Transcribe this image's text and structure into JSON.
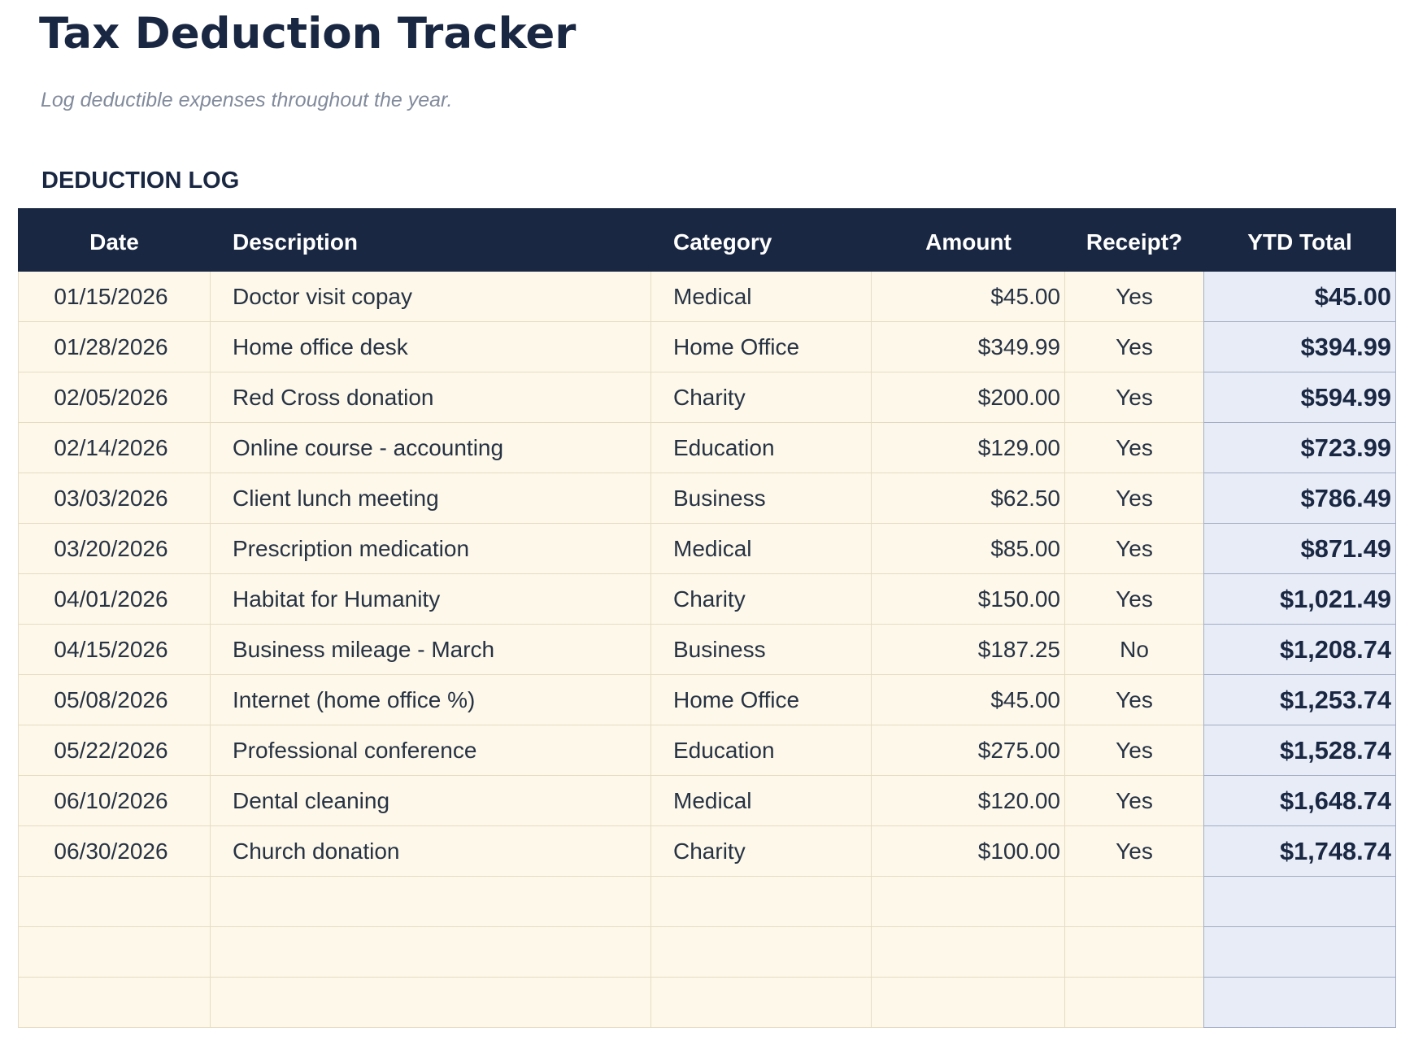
{
  "page": {
    "title": "Tax Deduction Tracker",
    "subtitle": "Log deductible expenses throughout the year.",
    "section_label": "DEDUCTION LOG"
  },
  "colors": {
    "navy": "#192742",
    "cream": "#fdf8ea",
    "tan_border": "#e6dcc2",
    "lavender": "#e8ecf7",
    "lavender_border": "#a3adc4",
    "subtitle_text": "#828b9c",
    "body_text": "#273243",
    "header_text": "#ffffff"
  },
  "table": {
    "columns": [
      "Date",
      "Description",
      "Category",
      "Amount",
      "Receipt?",
      "YTD Total"
    ],
    "rows": [
      {
        "date": "01/15/2026",
        "description": "Doctor visit copay",
        "category": "Medical",
        "amount": "$45.00",
        "receipt": "Yes",
        "ytd": "$45.00"
      },
      {
        "date": "01/28/2026",
        "description": "Home office desk",
        "category": "Home Office",
        "amount": "$349.99",
        "receipt": "Yes",
        "ytd": "$394.99"
      },
      {
        "date": "02/05/2026",
        "description": "Red Cross donation",
        "category": "Charity",
        "amount": "$200.00",
        "receipt": "Yes",
        "ytd": "$594.99"
      },
      {
        "date": "02/14/2026",
        "description": "Online course - accounting",
        "category": "Education",
        "amount": "$129.00",
        "receipt": "Yes",
        "ytd": "$723.99"
      },
      {
        "date": "03/03/2026",
        "description": "Client lunch meeting",
        "category": "Business",
        "amount": "$62.50",
        "receipt": "Yes",
        "ytd": "$786.49"
      },
      {
        "date": "03/20/2026",
        "description": "Prescription medication",
        "category": "Medical",
        "amount": "$85.00",
        "receipt": "Yes",
        "ytd": "$871.49"
      },
      {
        "date": "04/01/2026",
        "description": "Habitat for Humanity",
        "category": "Charity",
        "amount": "$150.00",
        "receipt": "Yes",
        "ytd": "$1,021.49"
      },
      {
        "date": "04/15/2026",
        "description": "Business mileage - March",
        "category": "Business",
        "amount": "$187.25",
        "receipt": "No",
        "ytd": "$1,208.74"
      },
      {
        "date": "05/08/2026",
        "description": "Internet (home office %)",
        "category": "Home Office",
        "amount": "$45.00",
        "receipt": "Yes",
        "ytd": "$1,253.74"
      },
      {
        "date": "05/22/2026",
        "description": "Professional conference",
        "category": "Education",
        "amount": "$275.00",
        "receipt": "Yes",
        "ytd": "$1,528.74"
      },
      {
        "date": "06/10/2026",
        "description": "Dental cleaning",
        "category": "Medical",
        "amount": "$120.00",
        "receipt": "Yes",
        "ytd": "$1,648.74"
      },
      {
        "date": "06/30/2026",
        "description": "Church donation",
        "category": "Charity",
        "amount": "$100.00",
        "receipt": "Yes",
        "ytd": "$1,748.74"
      }
    ],
    "empty_row_count": 3
  }
}
